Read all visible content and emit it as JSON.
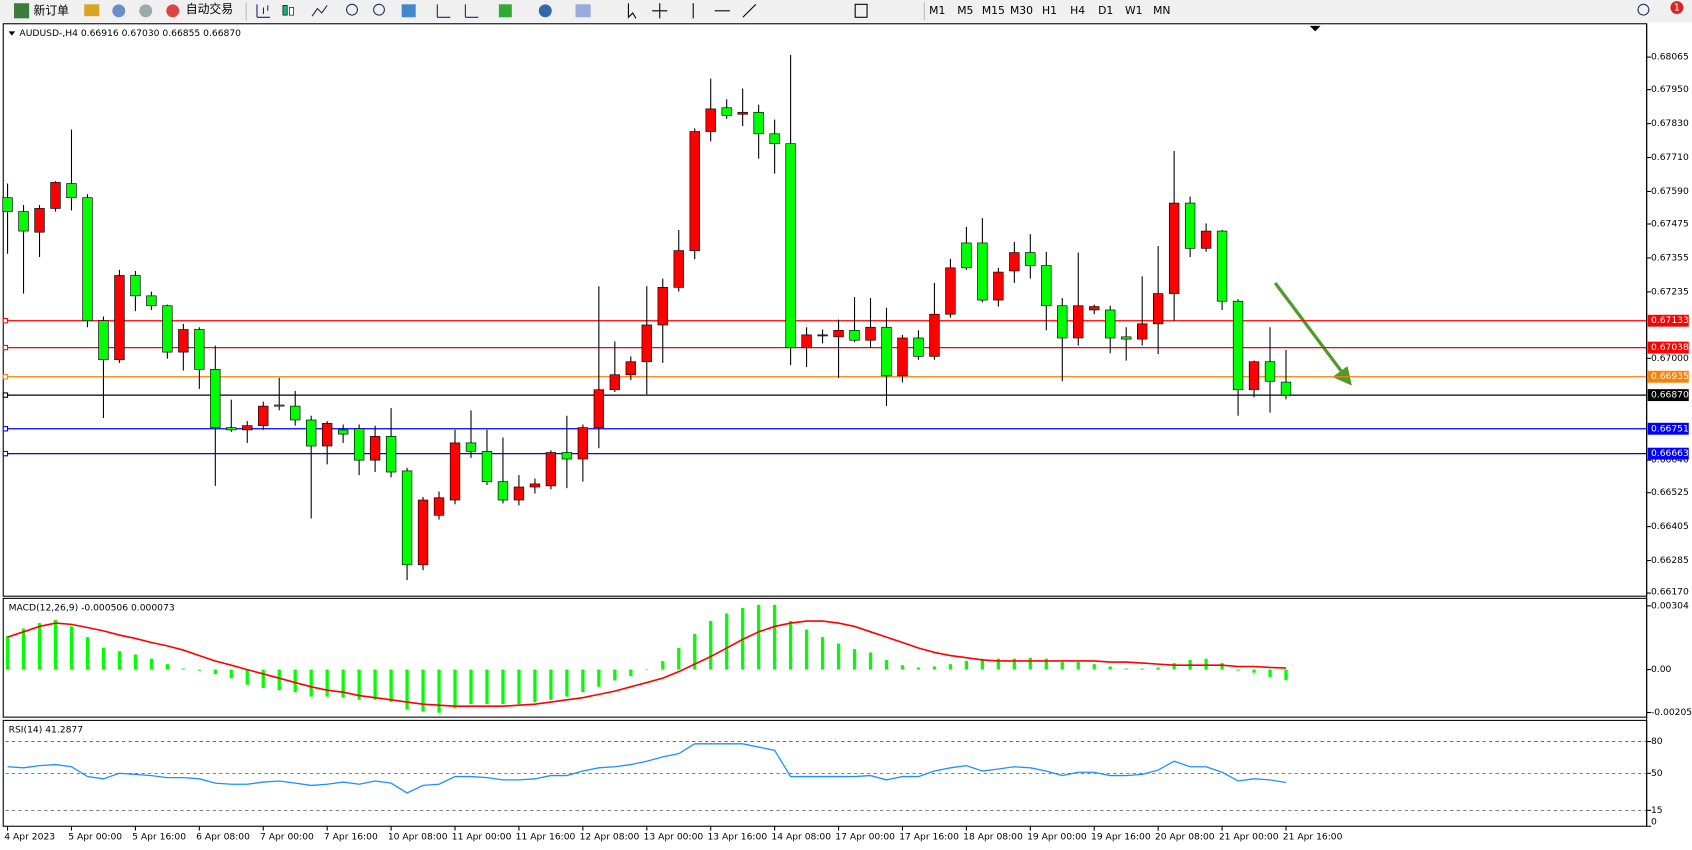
{
  "toolbar": {
    "new_order": "新订单",
    "auto_trading": "自动交易",
    "timeframes": [
      "M1",
      "M5",
      "M15",
      "M30",
      "H1",
      "H4",
      "D1",
      "W1",
      "MN"
    ],
    "notification_count": "1"
  },
  "chart_data": [
    {
      "type": "candlestick",
      "title": "AUDUSD-,H4  0.66916 0.67030 0.66855 0.66870",
      "categories": [
        "4 Apr 2023",
        null,
        null,
        null,
        "5 Apr 00:00",
        null,
        null,
        null,
        "5 Apr 16:00",
        null,
        null,
        null,
        "6 Apr 08:00",
        null,
        null,
        null,
        "7 Apr 00:00",
        null,
        null,
        null,
        "7 Apr 16:00",
        null,
        null,
        null,
        "10 Apr 08:00",
        null,
        null,
        null,
        "11 Apr 00:00",
        null,
        null,
        null,
        "11 Apr 16:00",
        null,
        null,
        null,
        "12 Apr 08:00",
        null,
        null,
        null,
        "13 Apr 00:00",
        null,
        null,
        null,
        "13 Apr 16:00",
        null,
        null,
        null,
        "14 Apr 08:00",
        null,
        null,
        null,
        "17 Apr 00:00",
        null,
        null,
        null,
        "17 Apr 16:00",
        null,
        null,
        null,
        "18 Apr 08:00",
        null,
        null,
        null,
        "19 Apr 00:00",
        null,
        null,
        null,
        "19 Apr 16:00",
        null,
        null,
        null,
        "20 Apr 08:00",
        null,
        null,
        null,
        "21 Apr 00:00",
        null,
        null,
        null,
        "21 Apr 16:00"
      ],
      "open": [
        0.67568,
        0.67519,
        0.67446,
        0.6753,
        0.67618,
        0.67568,
        0.67133,
        0.66995,
        0.67293,
        0.67221,
        0.67186,
        0.67022,
        0.67102,
        0.66961,
        0.66755,
        0.66747,
        0.66762,
        0.66835,
        0.66831,
        0.66782,
        0.6669,
        0.66747,
        0.66751,
        0.6664,
        0.66724,
        0.66602,
        0.6627,
        0.66445,
        0.66499,
        0.66701,
        0.66671,
        0.66564,
        0.66499,
        0.66545,
        0.66549,
        0.66667,
        0.66644,
        0.66755,
        0.66889,
        0.66942,
        0.66988,
        0.67118,
        0.67251,
        0.67381,
        0.67802,
        0.67886,
        0.67863,
        0.6787,
        0.67794,
        0.67759,
        0.67038,
        0.6708,
        0.67076,
        0.67099,
        0.67064,
        0.6711,
        0.66938,
        0.67072,
        0.67007,
        0.67156,
        0.67408,
        0.67408,
        0.67206,
        0.67309,
        0.67374,
        0.67328,
        0.67186,
        0.67072,
        0.67171,
        0.67171,
        0.67076,
        0.67068,
        0.67122,
        0.67229,
        0.67549,
        0.67389,
        0.6745,
        0.67202,
        0.66889,
        0.66988,
        0.66916
      ],
      "high": [
        0.67618,
        0.67542,
        0.67542,
        0.67626,
        0.67809,
        0.6758,
        0.67148,
        0.67313,
        0.67309,
        0.67236,
        0.6719,
        0.67122,
        0.6711,
        0.67045,
        0.66854,
        0.66778,
        0.66847,
        0.66931,
        0.66885,
        0.66797,
        0.66778,
        0.66766,
        0.66766,
        0.66762,
        0.66824,
        0.66613,
        0.6651,
        0.66529,
        0.66747,
        0.66816,
        0.66747,
        0.6672,
        0.66587,
        0.66575,
        0.66675,
        0.66797,
        0.66766,
        0.67255,
        0.6706,
        0.67007,
        0.67255,
        0.67282,
        0.67454,
        0.67813,
        0.67989,
        0.67916,
        0.67954,
        0.67897,
        0.67844,
        0.68073,
        0.6711,
        0.67102,
        0.67137,
        0.67217,
        0.67213,
        0.67179,
        0.67083,
        0.67099,
        0.67267,
        0.67351,
        0.67465,
        0.67496,
        0.6732,
        0.67412,
        0.67439,
        0.67377,
        0.67213,
        0.67374,
        0.6719,
        0.67186,
        0.6711,
        0.6729,
        0.67397,
        0.67733,
        0.67572,
        0.67477,
        0.67454,
        0.67209,
        0.66992,
        0.6711,
        0.6703
      ],
      "low": [
        0.6737,
        0.67229,
        0.67358,
        0.67519,
        0.67523,
        0.6711,
        0.66789,
        0.66984,
        0.67167,
        0.67171,
        0.66999,
        0.66957,
        0.66892,
        0.66549,
        0.6674,
        0.66701,
        0.66747,
        0.66816,
        0.66762,
        0.66434,
        0.66625,
        0.66701,
        0.66587,
        0.66598,
        0.66579,
        0.66216,
        0.66251,
        0.6643,
        0.66484,
        0.66648,
        0.66552,
        0.66487,
        0.6648,
        0.66522,
        0.66537,
        0.66541,
        0.66564,
        0.66682,
        0.66881,
        0.66923,
        0.66873,
        0.66984,
        0.67236,
        0.67351,
        0.67767,
        0.67847,
        0.67821,
        0.67706,
        0.67653,
        0.66976,
        0.66969,
        0.67053,
        0.66931,
        0.67057,
        0.67038,
        0.66831,
        0.66915,
        0.66995,
        0.66995,
        0.67144,
        0.67313,
        0.67198,
        0.67183,
        0.67267,
        0.67282,
        0.67099,
        0.66919,
        0.67045,
        0.67156,
        0.67018,
        0.66992,
        0.67045,
        0.67015,
        0.67133,
        0.67358,
        0.67377,
        0.67171,
        0.66797,
        0.66862,
        0.66808,
        0.66855
      ],
      "close": [
        0.67519,
        0.6745,
        0.6753,
        0.67622,
        0.67568,
        0.67133,
        0.66995,
        0.67293,
        0.67221,
        0.67186,
        0.67022,
        0.67102,
        0.66961,
        0.66755,
        0.66747,
        0.66762,
        0.66831,
        0.66831,
        0.66782,
        0.6669,
        0.6677,
        0.66732,
        0.6664,
        0.66724,
        0.66598,
        0.6627,
        0.66499,
        0.66507,
        0.66701,
        0.66671,
        0.66564,
        0.66499,
        0.66545,
        0.66556,
        0.66667,
        0.66644,
        0.66755,
        0.66889,
        0.66942,
        0.66988,
        0.67118,
        0.67251,
        0.67381,
        0.67802,
        0.67882,
        0.67859,
        0.6787,
        0.67794,
        0.67759,
        0.67038,
        0.67083,
        0.67083,
        0.67099,
        0.67064,
        0.6711,
        0.66938,
        0.67072,
        0.67007,
        0.67156,
        0.6732,
        0.6732,
        0.67206,
        0.67305,
        0.67374,
        0.67328,
        0.67186,
        0.67072,
        0.67186,
        0.67183,
        0.67072,
        0.67068,
        0.67122,
        0.67229,
        0.67549,
        0.67389,
        0.6745,
        0.67202,
        0.66889,
        0.66988,
        0.66919,
        0.6687
      ],
      "up_color": "#ff0000",
      "down_color": "#00ff00",
      "ylim": [
        0.66159,
        0.68183
      ],
      "yticks": [
        0.68065,
        {
          "value": 0.6795,
          "label": "0.67950"
        },
        {
          "value": 0.6783,
          "label": "0.67830"
        },
        {
          "value": 0.6771,
          "label": "0.67710"
        },
        {
          "value": 0.6759,
          "label": "0.67590"
        },
        0.67475,
        0.67355,
        0.67235,
        {
          "value": 0.67,
          "label": "0.67000"
        },
        {
          "value": 0.6664,
          "label": "0.66640"
        },
        0.66525,
        0.66405,
        0.66285,
        {
          "value": 0.6617,
          "label": "0.66170"
        }
      ],
      "levels": [
        {
          "value": 0.67133,
          "color": "#ff0000"
        },
        {
          "value": 0.67038,
          "color": "#ff0000"
        },
        {
          "value": 0.66935,
          "color": "#ff8000"
        },
        {
          "value": 0.6687,
          "label": "0.66870",
          "color": "#000000"
        },
        {
          "value": 0.66751,
          "color": "#0000ff"
        },
        {
          "value": 0.66663,
          "color": "#0000ff"
        }
      ]
    },
    {
      "type": "macd",
      "title": "MACD(12,26,9) -0.000506 0.000073",
      "histogram": [
        0.0016,
        0.00196,
        0.00222,
        0.00237,
        0.00206,
        0.00155,
        0.00103,
        0.00088,
        0.00072,
        0.00052,
        0.00026,
        5e-05,
        -5e-05,
        -0.00021,
        -0.00041,
        -0.00072,
        -0.00088,
        -0.00098,
        -0.00108,
        -0.00129,
        -0.00129,
        -0.00134,
        -0.00144,
        -0.00144,
        -0.00155,
        -0.00191,
        -0.00201,
        -0.00206,
        -0.00185,
        -0.00165,
        -0.00165,
        -0.00165,
        -0.00165,
        -0.00155,
        -0.00144,
        -0.00129,
        -0.00108,
        -0.00082,
        -0.00052,
        -0.00031,
        0,
        0.00041,
        0.00103,
        0.0017,
        0.00232,
        0.00268,
        0.00294,
        0.00309,
        0.00309,
        0.00232,
        0.00191,
        0.00155,
        0.00124,
        0.00098,
        0.00082,
        0.00046,
        0.00021,
        0.0001,
        0.00015,
        0.00026,
        0.00041,
        0.00052,
        0.00052,
        0.00052,
        0.00057,
        0.00052,
        0.00036,
        0.00036,
        0.00026,
        0.00015,
        5e-05,
        5e-05,
        0.0001,
        0.00031,
        0.00046,
        0.00052,
        0.00031,
        -5e-05,
        -0.00015,
        -0.00036,
        -0.000506
      ],
      "histogram_color": "#00ff00",
      "signal": [
        0.00155,
        0.0018,
        0.00206,
        0.00222,
        0.00216,
        0.00201,
        0.00185,
        0.00165,
        0.00149,
        0.00129,
        0.00113,
        0.00093,
        0.00067,
        0.00041,
        0.00021,
        0,
        -0.00021,
        -0.00041,
        -0.00062,
        -0.00082,
        -0.00098,
        -0.00108,
        -0.00124,
        -0.00134,
        -0.00144,
        -0.00155,
        -0.00165,
        -0.0017,
        -0.00175,
        -0.00175,
        -0.00175,
        -0.00175,
        -0.0017,
        -0.00165,
        -0.00155,
        -0.00144,
        -0.00134,
        -0.00118,
        -0.00103,
        -0.00082,
        -0.00062,
        -0.00041,
        -0.0001,
        0.00026,
        0.00062,
        0.00103,
        0.00144,
        0.0018,
        0.00206,
        0.00222,
        0.00232,
        0.00232,
        0.00222,
        0.00206,
        0.0018,
        0.00155,
        0.00129,
        0.00103,
        0.00082,
        0.00067,
        0.00057,
        0.00046,
        0.00041,
        0.00041,
        0.00041,
        0.00041,
        0.00041,
        0.00041,
        0.00041,
        0.00036,
        0.00036,
        0.00031,
        0.00026,
        0.00021,
        0.00021,
        0.00021,
        0.00021,
        0.00015,
        0.00015,
        0.0001,
        7.3e-05
      ],
      "signal_color": "#ff0000",
      "ylim": [
        -0.00227,
        0.0034
      ],
      "yticks": [
        0.00304,
        {
          "value": 0,
          "label": "0.00"
        },
        -0.00205
      ]
    },
    {
      "type": "line",
      "title": "RSI(14) 41.2877",
      "values": [
        56.2,
        55.2,
        57.2,
        58.3,
        56.2,
        46.9,
        44.8,
        50,
        49,
        47.9,
        45.9,
        45.9,
        44.8,
        40.7,
        39.7,
        39.7,
        41.7,
        42.8,
        40.7,
        38.6,
        39.7,
        41.7,
        39.7,
        42.8,
        40.7,
        31.4,
        38.6,
        39.7,
        46.9,
        46.9,
        45.9,
        43.8,
        43.8,
        44.8,
        47.9,
        47.9,
        52.1,
        55.2,
        56.2,
        58.3,
        61.4,
        65.5,
        68.6,
        77.9,
        77.9,
        77.9,
        77.9,
        74.8,
        71.7,
        46.9,
        46.9,
        46.9,
        46.9,
        46.9,
        47.9,
        43.8,
        46.9,
        46.9,
        52.1,
        55.2,
        57.2,
        52.1,
        54.1,
        56.2,
        55.2,
        52.1,
        47.9,
        51,
        51,
        47.9,
        47.9,
        49,
        53.1,
        61.4,
        56.2,
        56.2,
        51,
        42.8,
        44.8,
        43.8,
        41.2877
      ],
      "color": "#1e90ff",
      "ylim": [
        0,
        100
      ],
      "yticks": [
        80,
        50,
        15,
        0
      ]
    }
  ]
}
